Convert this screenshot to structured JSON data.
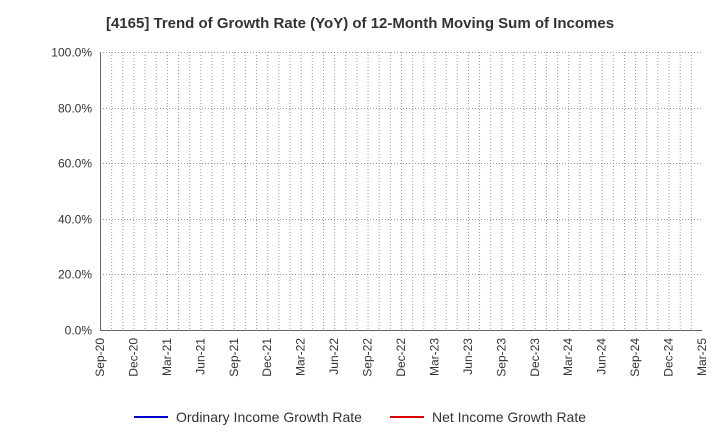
{
  "chart_data": {
    "type": "line",
    "title": "[4165]  Trend of Growth Rate (YoY) of 12-Month Moving Sum of Incomes",
    "xlabel": "",
    "ylabel": "",
    "ylim": [
      0,
      100
    ],
    "y_ticks": [
      "0.0%",
      "20.0%",
      "40.0%",
      "60.0%",
      "80.0%",
      "100.0%"
    ],
    "y_tick_values": [
      0,
      20,
      40,
      60,
      80,
      100
    ],
    "x_ticks": [
      "Sep-20",
      "Dec-20",
      "Mar-21",
      "Jun-21",
      "Sep-21",
      "Dec-21",
      "Mar-22",
      "Jun-22",
      "Sep-22",
      "Dec-22",
      "Mar-23",
      "Jun-23",
      "Sep-23",
      "Dec-23",
      "Mar-24",
      "Jun-24",
      "Sep-24",
      "Dec-24",
      "Mar-25"
    ],
    "months": 54,
    "grid": true,
    "series": [
      {
        "name": "Ordinary Income Growth Rate",
        "color": "#0000cc",
        "values": []
      },
      {
        "name": "Net Income Growth Rate",
        "color": "#dd0000",
        "values": []
      }
    ],
    "legend_position": "bottom"
  }
}
